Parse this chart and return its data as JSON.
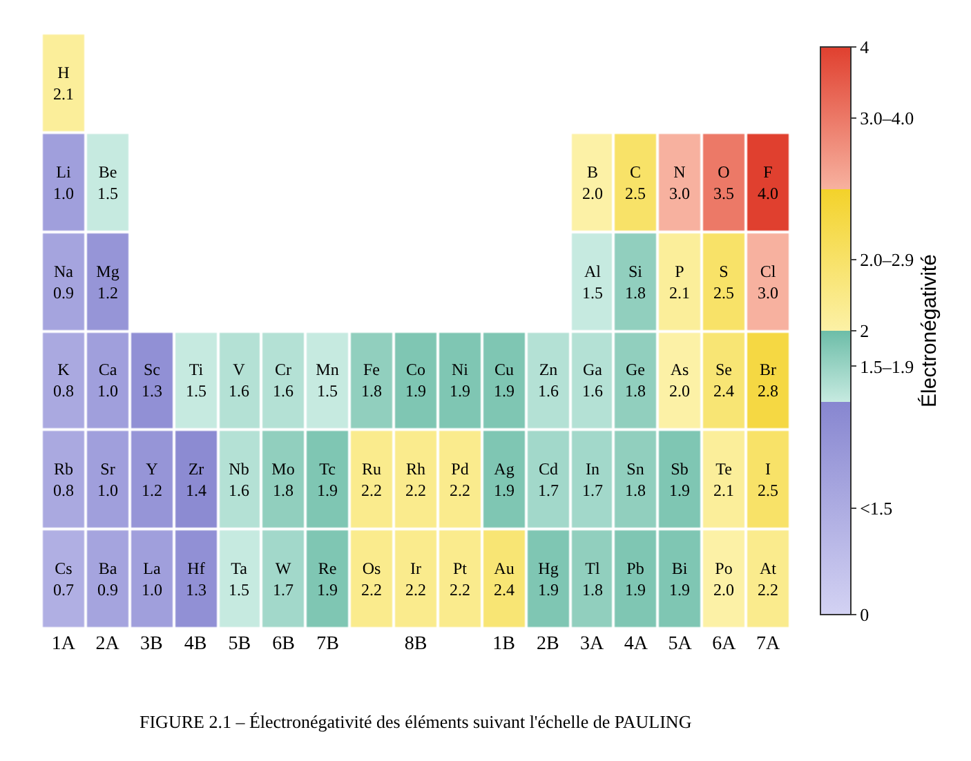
{
  "chart_data": {
    "type": "heatmap",
    "categories": [
      "1A",
      "2A",
      "3B",
      "4B",
      "5B",
      "6B",
      "7B",
      null,
      "8B",
      null,
      "1B",
      "2B",
      "3A",
      "4A",
      "5A",
      "6A",
      "7A"
    ],
    "y_categories": [
      null,
      null,
      null,
      null,
      null,
      null
    ],
    "cells": [
      [
        2.1,
        null,
        null,
        null,
        null,
        null,
        null,
        null,
        null,
        null,
        null,
        null,
        null,
        null,
        null,
        null,
        null
      ],
      [
        1.0,
        1.5,
        null,
        null,
        null,
        null,
        null,
        null,
        null,
        null,
        null,
        null,
        2.0,
        2.5,
        3.0,
        3.5,
        4.0
      ],
      [
        0.9,
        1.2,
        null,
        null,
        null,
        null,
        null,
        null,
        null,
        null,
        null,
        null,
        1.5,
        1.8,
        2.1,
        2.5,
        3.0
      ],
      [
        0.8,
        1.0,
        1.3,
        1.5,
        1.6,
        1.6,
        1.5,
        1.8,
        1.9,
        1.9,
        1.9,
        1.6,
        1.6,
        1.8,
        2.0,
        2.4,
        2.8
      ],
      [
        0.8,
        1.0,
        1.2,
        1.4,
        1.6,
        1.8,
        1.9,
        2.2,
        2.2,
        2.2,
        1.9,
        1.7,
        1.7,
        1.8,
        1.9,
        2.1,
        2.5
      ],
      [
        0.7,
        0.9,
        1.0,
        1.3,
        1.5,
        1.7,
        1.9,
        2.2,
        2.2,
        2.2,
        2.4,
        1.9,
        1.8,
        1.9,
        1.9,
        2.0,
        2.2
      ]
    ],
    "cell_labels": [
      [
        "H\n2.1",
        null,
        null,
        null,
        null,
        null,
        null,
        null,
        null,
        null,
        null,
        null,
        null,
        null,
        null,
        null,
        null
      ],
      [
        "Li\n1.0",
        "Be\n1.5",
        null,
        null,
        null,
        null,
        null,
        null,
        null,
        null,
        null,
        null,
        "B\n2.0",
        "C\n2.5",
        "N\n3.0",
        "O\n3.5",
        "F\n4.0"
      ],
      [
        "Na\n0.9",
        "Mg\n1.2",
        null,
        null,
        null,
        null,
        null,
        null,
        null,
        null,
        null,
        null,
        "Al\n1.5",
        "Si\n1.8",
        "P\n2.1",
        "S\n2.5",
        "Cl\n3.0"
      ],
      [
        "K\n0.8",
        "Ca\n1.0",
        "Sc\n1.3",
        "Ti\n1.5",
        "V\n1.6",
        "Cr\n1.6",
        "Mn\n1.5",
        "Fe\n1.8",
        "Co\n1.9",
        "Ni\n1.9",
        "Cu\n1.9",
        "Zn\n1.6",
        "Ga\n1.6",
        "Ge\n1.8",
        "As\n2.0",
        "Se\n2.4",
        "Br\n2.8"
      ],
      [
        "Rb\n0.8",
        "Sr\n1.0",
        "Y\n1.2",
        "Zr\n1.4",
        "Nb\n1.6",
        "Mo\n1.8",
        "Tc\n1.9",
        "Ru\n2.2",
        "Rh\n2.2",
        "Pd\n2.2",
        "Ag\n1.9",
        "Cd\n1.7",
        "In\n1.7",
        "Sn\n1.8",
        "Sb\n1.9",
        "Te\n2.1",
        "I\n2.5"
      ],
      [
        "Cs\n0.7",
        "Ba\n0.9",
        "La\n1.0",
        "Hf\n1.3",
        "Ta\n1.5",
        "W\n1.7",
        "Re\n1.9",
        "Os\n2.2",
        "Ir\n2.2",
        "Pt\n2.2",
        "Au\n2.4",
        "Hg\n1.9",
        "Tl\n1.8",
        "Pb\n1.9",
        "Bi\n1.9",
        "Po\n2.0",
        "At\n2.2"
      ]
    ],
    "clabel": "Électronégativité",
    "clim": [
      0,
      4
    ],
    "cticks": [
      0,
      {
        "value": 0.75,
        "label": "<1.5"
      },
      {
        "value": 1.75,
        "label": "1.5–1.9"
      },
      2,
      {
        "value": 2.5,
        "label": "2.0–2.9"
      },
      {
        "value": 3.5,
        "label": "3.0–4.0"
      },
      4
    ],
    "annotations": [
      "FIGURE 2.1 – Électronégativité des éléments suivant l'échelle de PAULING"
    ]
  }
}
